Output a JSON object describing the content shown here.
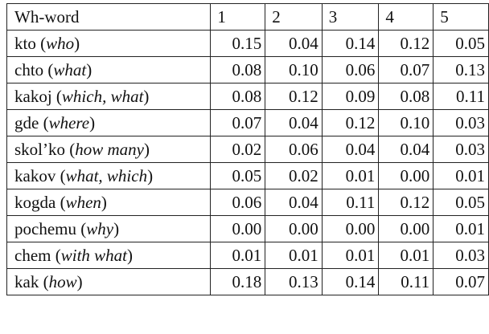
{
  "table": {
    "header": [
      "Wh-word",
      "1",
      "2",
      "3",
      "4",
      "5"
    ],
    "rows": [
      {
        "label": [
          "kto (",
          "who",
          ")"
        ],
        "values": [
          "0.15",
          "0.04",
          "0.14",
          "0.12",
          "0.05"
        ]
      },
      {
        "label": [
          "chto (",
          "what",
          ")"
        ],
        "values": [
          "0.08",
          "0.10",
          "0.06",
          "0.07",
          "0.13"
        ]
      },
      {
        "label": [
          "kakoj (",
          "which, what",
          ")"
        ],
        "values": [
          "0.08",
          "0.12",
          "0.09",
          "0.08",
          "0.11"
        ]
      },
      {
        "label": [
          "gde (",
          "where",
          ")"
        ],
        "values": [
          "0.07",
          "0.04",
          "0.12",
          "0.10",
          "0.03"
        ]
      },
      {
        "label": [
          "skol’ko (",
          "how many",
          ")"
        ],
        "values": [
          "0.02",
          "0.06",
          "0.04",
          "0.04",
          "0.03"
        ]
      },
      {
        "label": [
          "kakov (",
          "what, which",
          ")"
        ],
        "values": [
          "0.05",
          "0.02",
          "0.01",
          "0.00",
          "0.01"
        ]
      },
      {
        "label": [
          "kogda (",
          "when",
          ")"
        ],
        "values": [
          "0.06",
          "0.04",
          "0.11",
          "0.12",
          "0.05"
        ]
      },
      {
        "label": [
          "pochemu (",
          "why",
          ")"
        ],
        "values": [
          "0.00",
          "0.00",
          "0.00",
          "0.00",
          "0.01"
        ]
      },
      {
        "label": [
          "chem (",
          "with what",
          ")"
        ],
        "values": [
          "0.01",
          "0.01",
          "0.01",
          "0.01",
          "0.03"
        ]
      },
      {
        "label": [
          "kak (",
          "how",
          ")"
        ],
        "values": [
          "0.18",
          "0.13",
          "0.14",
          "0.11",
          "0.07"
        ]
      }
    ]
  }
}
